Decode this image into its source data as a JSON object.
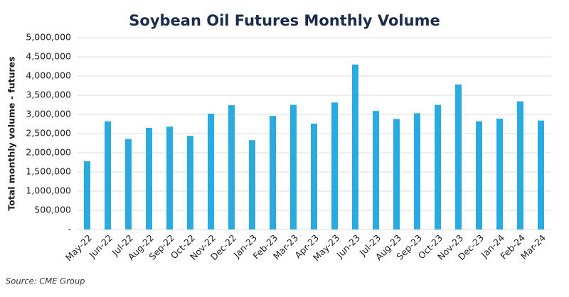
{
  "chart_data": {
    "type": "bar",
    "title": "Soybean Oil Futures Monthly Volume",
    "y_label": "Total monthly volume - futures",
    "source": "Source: CME Group",
    "categories": [
      "May-22",
      "Jun-22",
      "Jul-22",
      "Aug-22",
      "Sep-22",
      "Oct-22",
      "Nov-22",
      "Dec-22",
      "Jan-23",
      "Feb-23",
      "Mar-23",
      "Apr-23",
      "May-23",
      "Jun-23",
      "Jul-23",
      "Aug-23",
      "Sep-23",
      "Oct-23",
      "Nov-23",
      "Dec-23",
      "Jan-24",
      "Feb-24",
      "Mar-24"
    ],
    "values": [
      1780000,
      2820000,
      2360000,
      2650000,
      2680000,
      2440000,
      3020000,
      3240000,
      2330000,
      2960000,
      3250000,
      2760000,
      3310000,
      4300000,
      3090000,
      2880000,
      3030000,
      3250000,
      3780000,
      2820000,
      2890000,
      3340000,
      2840000
    ],
    "color": "#29abe2",
    "ylim": [
      0,
      5000000
    ],
    "yticks": [
      {
        "value": 0,
        "label": "-"
      },
      {
        "value": 500000,
        "label": "500,000"
      },
      {
        "value": 1000000,
        "label": "1,000,000"
      },
      {
        "value": 1500000,
        "label": "1,500,000"
      },
      {
        "value": 2000000,
        "label": "2,000,000"
      },
      {
        "value": 2500000,
        "label": "2,500,000"
      },
      {
        "value": 3000000,
        "label": "3,000,000"
      },
      {
        "value": 3500000,
        "label": "3,500,000"
      },
      {
        "value": 4000000,
        "label": "4,000,000"
      },
      {
        "value": 4500000,
        "label": "4,500,000"
      },
      {
        "value": 5000000,
        "label": "5,000,000"
      }
    ],
    "grid": true
  }
}
